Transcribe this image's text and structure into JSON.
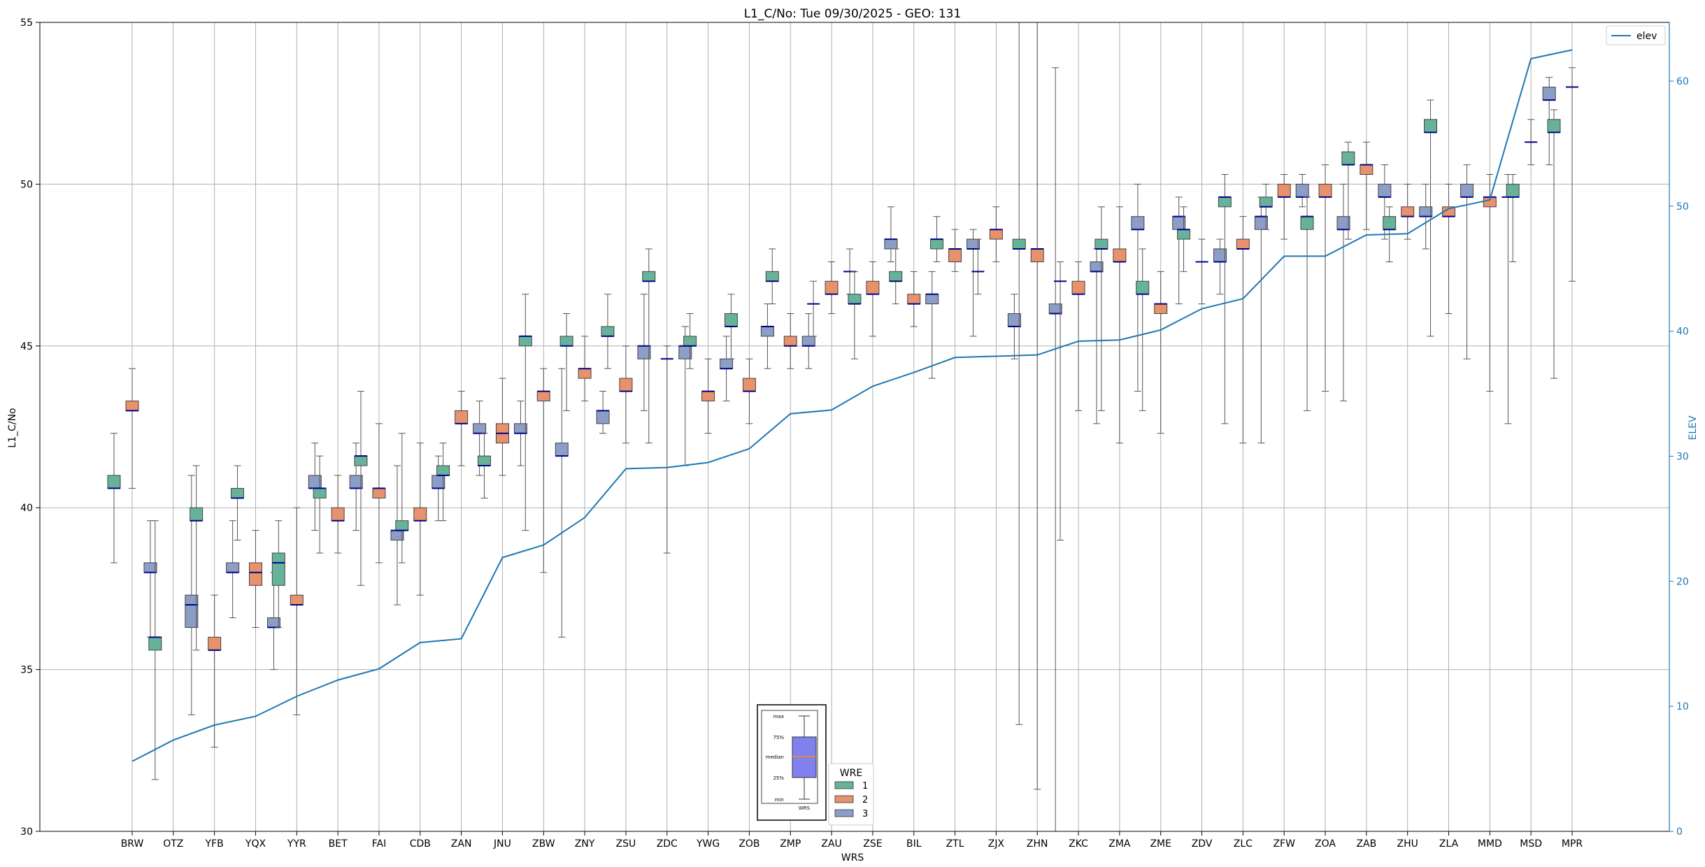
{
  "chart_data": {
    "type": "box",
    "title": "L1_C/No: Tue 09/30/2025 - GEO: 131",
    "xlabel": "WRS",
    "ylabel": "L1_C/No",
    "y2label": "ELEV",
    "ylim": [
      30,
      55
    ],
    "y2lim": [
      0,
      64.7
    ],
    "yticks": [
      30,
      35,
      40,
      45,
      50,
      55
    ],
    "y2ticks": [
      0,
      10,
      20,
      30,
      40,
      50,
      60
    ],
    "grid": true,
    "legend_line": "elev",
    "legend_title": "WRE",
    "legend_entries": [
      "1",
      "2",
      "3"
    ],
    "colors": {
      "wre1": "#66b399",
      "wre2": "#e8916d",
      "wre3": "#8c9dc6",
      "elev_line": "#1f77b4",
      "median": "#00008b",
      "whisker": "#555555",
      "grid": "#b0b0b0"
    },
    "categories": [
      "BRW",
      "OTZ",
      "YFB",
      "YQX",
      "YYR",
      "BET",
      "FAI",
      "CDB",
      "ZAN",
      "JNU",
      "ZBW",
      "ZNY",
      "ZSU",
      "ZDC",
      "YWG",
      "ZOB",
      "ZMP",
      "ZAU",
      "ZSE",
      "BIL",
      "ZTL",
      "ZJX",
      "ZHN",
      "ZKC",
      "ZMA",
      "ZME",
      "ZDV",
      "ZLC",
      "ZFW",
      "ZOA",
      "ZAB",
      "ZHU",
      "ZLA",
      "MMD",
      "MSD",
      "MPR"
    ],
    "elev": [
      5.6,
      7.3,
      8.5,
      9.2,
      10.8,
      12.1,
      13.0,
      15.1,
      15.4,
      21.9,
      22.9,
      25.1,
      29.0,
      29.1,
      29.5,
      30.6,
      33.4,
      33.7,
      35.6,
      36.7,
      37.9,
      38.0,
      38.1,
      39.2,
      39.3,
      40.1,
      41.8,
      42.6,
      46.0,
      46.0,
      47.7,
      47.8,
      49.8,
      50.5,
      61.8,
      62.5
    ],
    "boxes": [
      {
        "station": "BRW",
        "wre": 1,
        "min": 38.3,
        "q1": 40.6,
        "median": 40.6,
        "q3": 41.0,
        "max": 42.3
      },
      {
        "station": "BRW",
        "wre": 2,
        "min": 40.6,
        "q1": 43.0,
        "median": 43.0,
        "q3": 43.3,
        "max": 44.3
      },
      {
        "station": "BRW",
        "wre": 3,
        "min": 36.0,
        "q1": 38.0,
        "median": 38.0,
        "q3": 38.3,
        "max": 39.6
      },
      {
        "station": "OTZ",
        "wre": 1,
        "min": 31.6,
        "q1": 35.6,
        "median": 36.0,
        "q3": 36.0,
        "max": 39.6
      },
      {
        "station": "OTZ",
        "wre": 3,
        "min": 33.6,
        "q1": 36.3,
        "median": 37.0,
        "q3": 37.3,
        "max": 41.0
      },
      {
        "station": "YFB",
        "wre": 1,
        "min": 35.6,
        "q1": 39.6,
        "median": 39.6,
        "q3": 40.0,
        "max": 41.3
      },
      {
        "station": "YFB",
        "wre": 2,
        "min": 32.6,
        "q1": 35.6,
        "median": 35.6,
        "q3": 36.0,
        "max": 37.3
      },
      {
        "station": "YFB",
        "wre": 3,
        "min": 36.6,
        "q1": 38.0,
        "median": 38.0,
        "q3": 38.3,
        "max": 39.6
      },
      {
        "station": "YQX",
        "wre": 1,
        "min": 39.0,
        "q1": 40.3,
        "median": 40.3,
        "q3": 40.6,
        "max": 41.3
      },
      {
        "station": "YQX",
        "wre": 2,
        "min": 36.3,
        "q1": 37.6,
        "median": 38.0,
        "q3": 38.3,
        "max": 39.3
      },
      {
        "station": "YQX",
        "wre": 3,
        "min": 35.0,
        "q1": 36.3,
        "median": 36.3,
        "q3": 36.6,
        "max": 38.0
      },
      {
        "station": "YYR",
        "wre": 1,
        "min": 36.3,
        "q1": 37.6,
        "median": 38.3,
        "q3": 38.6,
        "max": 39.6
      },
      {
        "station": "YYR",
        "wre": 2,
        "min": 33.6,
        "q1": 37.0,
        "median": 37.0,
        "q3": 37.3,
        "max": 40.0
      },
      {
        "station": "YYR",
        "wre": 3,
        "min": 39.3,
        "q1": 40.6,
        "median": 40.6,
        "q3": 41.0,
        "max": 42.0
      },
      {
        "station": "BET",
        "wre": 1,
        "min": 38.6,
        "q1": 40.3,
        "median": 40.6,
        "q3": 40.6,
        "max": 41.6
      },
      {
        "station": "BET",
        "wre": 2,
        "min": 38.6,
        "q1": 39.6,
        "median": 39.6,
        "q3": 40.0,
        "max": 41.0
      },
      {
        "station": "BET",
        "wre": 3,
        "min": 39.3,
        "q1": 40.6,
        "median": 40.6,
        "q3": 41.0,
        "max": 42.0
      },
      {
        "station": "FAI",
        "wre": 1,
        "min": 37.6,
        "q1": 41.3,
        "median": 41.6,
        "q3": 41.6,
        "max": 43.6
      },
      {
        "station": "FAI",
        "wre": 2,
        "min": 38.3,
        "q1": 40.3,
        "median": 40.6,
        "q3": 40.6,
        "max": 42.6
      },
      {
        "station": "FAI",
        "wre": 3,
        "min": 37.0,
        "q1": 39.0,
        "median": 39.3,
        "q3": 39.3,
        "max": 41.3
      },
      {
        "station": "CDB",
        "wre": 1,
        "min": 38.3,
        "q1": 39.3,
        "median": 39.3,
        "q3": 39.6,
        "max": 42.3
      },
      {
        "station": "CDB",
        "wre": 2,
        "min": 37.3,
        "q1": 39.6,
        "median": 39.6,
        "q3": 40.0,
        "max": 42.0
      },
      {
        "station": "CDB",
        "wre": 3,
        "min": 39.6,
        "q1": 40.6,
        "median": 40.6,
        "q3": 41.0,
        "max": 41.6
      },
      {
        "station": "ZAN",
        "wre": 1,
        "min": 39.6,
        "q1": 41.0,
        "median": 41.0,
        "q3": 41.3,
        "max": 42.0
      },
      {
        "station": "ZAN",
        "wre": 2,
        "min": 41.3,
        "q1": 42.6,
        "median": 42.6,
        "q3": 43.0,
        "max": 43.6
      },
      {
        "station": "ZAN",
        "wre": 3,
        "min": 41.0,
        "q1": 42.3,
        "median": 42.3,
        "q3": 42.6,
        "max": 43.3
      },
      {
        "station": "JNU",
        "wre": 1,
        "min": 40.3,
        "q1": 41.3,
        "median": 41.3,
        "q3": 41.6,
        "max": 42.3
      },
      {
        "station": "JNU",
        "wre": 2,
        "min": 41.0,
        "q1": 42.0,
        "median": 42.3,
        "q3": 42.6,
        "max": 44.0
      },
      {
        "station": "JNU",
        "wre": 3,
        "min": 41.3,
        "q1": 42.3,
        "median": 42.3,
        "q3": 42.6,
        "max": 43.3
      },
      {
        "station": "ZBW",
        "wre": 1,
        "min": 39.3,
        "q1": 45.0,
        "median": 45.3,
        "q3": 45.3,
        "max": 46.6
      },
      {
        "station": "ZBW",
        "wre": 2,
        "min": 38.0,
        "q1": 43.3,
        "median": 43.6,
        "q3": 43.6,
        "max": 44.3
      },
      {
        "station": "ZBW",
        "wre": 3,
        "min": 36.0,
        "q1": 41.6,
        "median": 41.6,
        "q3": 42.0,
        "max": 44.3
      },
      {
        "station": "ZNY",
        "wre": 1,
        "min": 43.0,
        "q1": 45.0,
        "median": 45.0,
        "q3": 45.3,
        "max": 46.0
      },
      {
        "station": "ZNY",
        "wre": 2,
        "min": 43.3,
        "q1": 44.0,
        "median": 44.3,
        "q3": 44.3,
        "max": 45.3
      },
      {
        "station": "ZNY",
        "wre": 3,
        "min": 42.3,
        "q1": 42.6,
        "median": 43.0,
        "q3": 43.0,
        "max": 43.6
      },
      {
        "station": "ZSU",
        "wre": 1,
        "min": 44.3,
        "q1": 45.3,
        "median": 45.3,
        "q3": 45.6,
        "max": 46.6
      },
      {
        "station": "ZSU",
        "wre": 2,
        "min": 42.0,
        "q1": 43.6,
        "median": 43.6,
        "q3": 44.0,
        "max": 45.0
      },
      {
        "station": "ZSU",
        "wre": 3,
        "min": 43.0,
        "q1": 44.6,
        "median": 45.0,
        "q3": 45.0,
        "max": 46.6
      },
      {
        "station": "ZDC",
        "wre": 1,
        "min": 42.0,
        "q1": 47.0,
        "median": 47.0,
        "q3": 47.3,
        "max": 48.0
      },
      {
        "station": "ZDC",
        "wre": 2,
        "min": 38.6,
        "q1": 44.6,
        "median": 44.6,
        "q3": 44.6,
        "max": 45.0
      },
      {
        "station": "ZDC",
        "wre": 3,
        "min": 41.3,
        "q1": 44.6,
        "median": 45.0,
        "q3": 45.0,
        "max": 45.6
      },
      {
        "station": "YWG",
        "wre": 1,
        "min": 44.3,
        "q1": 45.0,
        "median": 45.0,
        "q3": 45.3,
        "max": 46.0
      },
      {
        "station": "YWG",
        "wre": 2,
        "min": 42.3,
        "q1": 43.3,
        "median": 43.6,
        "q3": 43.6,
        "max": 44.6
      },
      {
        "station": "YWG",
        "wre": 3,
        "min": 43.3,
        "q1": 44.3,
        "median": 44.3,
        "q3": 44.6,
        "max": 45.3
      },
      {
        "station": "ZOB",
        "wre": 1,
        "min": 44.6,
        "q1": 45.6,
        "median": 45.6,
        "q3": 46.0,
        "max": 46.6
      },
      {
        "station": "ZOB",
        "wre": 2,
        "min": 42.6,
        "q1": 43.6,
        "median": 43.6,
        "q3": 44.0,
        "max": 44.6
      },
      {
        "station": "ZOB",
        "wre": 3,
        "min": 44.3,
        "q1": 45.3,
        "median": 45.6,
        "q3": 45.6,
        "max": 46.3
      },
      {
        "station": "ZMP",
        "wre": 1,
        "min": 46.3,
        "q1": 47.0,
        "median": 47.0,
        "q3": 47.3,
        "max": 48.0
      },
      {
        "station": "ZMP",
        "wre": 2,
        "min": 44.3,
        "q1": 45.0,
        "median": 45.0,
        "q3": 45.3,
        "max": 46.0
      },
      {
        "station": "ZMP",
        "wre": 3,
        "min": 44.3,
        "q1": 45.0,
        "median": 45.0,
        "q3": 45.3,
        "max": 46.0
      },
      {
        "station": "ZAU",
        "wre": 1,
        "min": 45.3,
        "q1": 46.3,
        "median": 46.3,
        "q3": 46.3,
        "max": 47.0
      },
      {
        "station": "ZAU",
        "wre": 2,
        "min": 46.0,
        "q1": 46.6,
        "median": 46.6,
        "q3": 47.0,
        "max": 47.6
      },
      {
        "station": "ZAU",
        "wre": 3,
        "min": 46.6,
        "q1": 47.3,
        "median": 47.3,
        "q3": 47.3,
        "max": 48.0
      },
      {
        "station": "ZSE",
        "wre": 1,
        "min": 44.6,
        "q1": 46.3,
        "median": 46.3,
        "q3": 46.6,
        "max": 47.3
      },
      {
        "station": "ZSE",
        "wre": 2,
        "min": 45.3,
        "q1": 46.6,
        "median": 46.6,
        "q3": 47.0,
        "max": 47.6
      },
      {
        "station": "ZSE",
        "wre": 3,
        "min": 47.6,
        "q1": 48.0,
        "median": 48.3,
        "q3": 48.3,
        "max": 49.3
      },
      {
        "station": "BIL",
        "wre": 1,
        "min": 46.3,
        "q1": 47.0,
        "median": 47.0,
        "q3": 47.3,
        "max": 48.0
      },
      {
        "station": "BIL",
        "wre": 2,
        "min": 45.6,
        "q1": 46.3,
        "median": 46.3,
        "q3": 46.6,
        "max": 47.3
      },
      {
        "station": "BIL",
        "wre": 3,
        "min": 44.0,
        "q1": 46.3,
        "median": 46.6,
        "q3": 46.6,
        "max": 47.3
      },
      {
        "station": "ZTL",
        "wre": 1,
        "min": 47.6,
        "q1": 48.0,
        "median": 48.3,
        "q3": 48.3,
        "max": 49.0
      },
      {
        "station": "ZTL",
        "wre": 2,
        "min": 47.3,
        "q1": 47.6,
        "median": 48.0,
        "q3": 48.0,
        "max": 48.6
      },
      {
        "station": "ZTL",
        "wre": 3,
        "min": 45.3,
        "q1": 48.0,
        "median": 48.0,
        "q3": 48.3,
        "max": 48.6
      },
      {
        "station": "ZJX",
        "wre": 1,
        "min": 46.6,
        "q1": 47.3,
        "median": 47.3,
        "q3": 47.3,
        "max": 48.3
      },
      {
        "station": "ZJX",
        "wre": 2,
        "min": 47.6,
        "q1": 48.3,
        "median": 48.6,
        "q3": 48.6,
        "max": 49.3
      },
      {
        "station": "ZJX",
        "wre": 3,
        "min": 44.6,
        "q1": 45.6,
        "median": 45.6,
        "q3": 46.0,
        "max": 46.6
      },
      {
        "station": "ZHN",
        "wre": 1,
        "min": 33.3,
        "q1": 48.0,
        "median": 48.0,
        "q3": 48.3,
        "max": 55.0
      },
      {
        "station": "ZHN",
        "wre": 2,
        "min": 31.3,
        "q1": 47.6,
        "median": 48.0,
        "q3": 48.0,
        "max": 55.0
      },
      {
        "station": "ZHN",
        "wre": 3,
        "min": 30.0,
        "q1": 46.0,
        "median": 46.0,
        "q3": 46.3,
        "max": 53.6
      },
      {
        "station": "ZKC",
        "wre": 1,
        "min": 39.0,
        "q1": 47.0,
        "median": 47.0,
        "q3": 47.0,
        "max": 47.6
      },
      {
        "station": "ZKC",
        "wre": 2,
        "min": 43.0,
        "q1": 46.6,
        "median": 46.6,
        "q3": 47.0,
        "max": 47.6
      },
      {
        "station": "ZKC",
        "wre": 3,
        "min": 42.6,
        "q1": 47.3,
        "median": 47.3,
        "q3": 47.6,
        "max": 48.0
      },
      {
        "station": "ZMA",
        "wre": 1,
        "min": 43.0,
        "q1": 48.0,
        "median": 48.0,
        "q3": 48.3,
        "max": 49.3
      },
      {
        "station": "ZMA",
        "wre": 2,
        "min": 42.0,
        "q1": 47.6,
        "median": 47.6,
        "q3": 48.0,
        "max": 49.3
      },
      {
        "station": "ZMA",
        "wre": 3,
        "min": 43.6,
        "q1": 48.6,
        "median": 48.6,
        "q3": 49.0,
        "max": 50.0
      },
      {
        "station": "ZME",
        "wre": 1,
        "min": 43.0,
        "q1": 46.6,
        "median": 46.6,
        "q3": 47.0,
        "max": 48.0
      },
      {
        "station": "ZME",
        "wre": 2,
        "min": 42.3,
        "q1": 46.0,
        "median": 46.3,
        "q3": 46.3,
        "max": 47.3
      },
      {
        "station": "ZME",
        "wre": 3,
        "min": 46.3,
        "q1": 48.6,
        "median": 49.0,
        "q3": 49.0,
        "max": 49.6
      },
      {
        "station": "ZDV",
        "wre": 1,
        "min": 47.3,
        "q1": 48.3,
        "median": 48.6,
        "q3": 48.6,
        "max": 49.3
      },
      {
        "station": "ZDV",
        "wre": 2,
        "min": 46.3,
        "q1": 47.6,
        "median": 47.6,
        "q3": 47.6,
        "max": 48.3
      },
      {
        "station": "ZDV",
        "wre": 3,
        "min": 46.6,
        "q1": 47.6,
        "median": 47.6,
        "q3": 48.0,
        "max": 48.3
      },
      {
        "station": "ZLC",
        "wre": 1,
        "min": 42.6,
        "q1": 49.3,
        "median": 49.6,
        "q3": 49.6,
        "max": 50.3
      },
      {
        "station": "ZLC",
        "wre": 2,
        "min": 42.0,
        "q1": 48.0,
        "median": 48.0,
        "q3": 48.3,
        "max": 49.0
      },
      {
        "station": "ZLC",
        "wre": 3,
        "min": 42.0,
        "q1": 48.6,
        "median": 49.0,
        "q3": 49.0,
        "max": 49.6
      },
      {
        "station": "ZFW",
        "wre": 1,
        "min": 48.6,
        "q1": 49.3,
        "median": 49.3,
        "q3": 49.6,
        "max": 50.0
      },
      {
        "station": "ZFW",
        "wre": 2,
        "min": 48.3,
        "q1": 49.6,
        "median": 49.6,
        "q3": 50.0,
        "max": 50.3
      },
      {
        "station": "ZFW",
        "wre": 3,
        "min": 49.3,
        "q1": 49.6,
        "median": 49.6,
        "q3": 50.0,
        "max": 50.3
      },
      {
        "station": "ZOA",
        "wre": 1,
        "min": 43.0,
        "q1": 48.6,
        "median": 49.0,
        "q3": 49.0,
        "max": 49.6
      },
      {
        "station": "ZOA",
        "wre": 2,
        "min": 43.6,
        "q1": 49.6,
        "median": 49.6,
        "q3": 50.0,
        "max": 50.6
      },
      {
        "station": "ZOA",
        "wre": 3,
        "min": 43.3,
        "q1": 48.6,
        "median": 48.6,
        "q3": 49.0,
        "max": 50.0
      },
      {
        "station": "ZAB",
        "wre": 1,
        "min": 48.3,
        "q1": 50.6,
        "median": 50.6,
        "q3": 51.0,
        "max": 51.3
      },
      {
        "station": "ZAB",
        "wre": 2,
        "min": 48.6,
        "q1": 50.3,
        "median": 50.6,
        "q3": 50.6,
        "max": 51.3
      },
      {
        "station": "ZAB",
        "wre": 3,
        "min": 48.3,
        "q1": 49.6,
        "median": 49.6,
        "q3": 50.0,
        "max": 50.6
      },
      {
        "station": "ZHU",
        "wre": 1,
        "min": 47.6,
        "q1": 48.6,
        "median": 48.6,
        "q3": 49.0,
        "max": 49.3
      },
      {
        "station": "ZHU",
        "wre": 2,
        "min": 48.3,
        "q1": 49.0,
        "median": 49.0,
        "q3": 49.3,
        "max": 50.0
      },
      {
        "station": "ZHU",
        "wre": 3,
        "min": 48.0,
        "q1": 49.0,
        "median": 49.0,
        "q3": 49.3,
        "max": 50.0
      },
      {
        "station": "ZLA",
        "wre": 1,
        "min": 45.3,
        "q1": 51.6,
        "median": 51.6,
        "q3": 52.0,
        "max": 52.6
      },
      {
        "station": "ZLA",
        "wre": 2,
        "min": 46.0,
        "q1": 49.0,
        "median": 49.0,
        "q3": 49.3,
        "max": 50.0
      },
      {
        "station": "ZLA",
        "wre": 3,
        "min": 44.6,
        "q1": 49.6,
        "median": 49.6,
        "q3": 50.0,
        "max": 50.6
      },
      {
        "station": "MMD",
        "wre": 2,
        "min": 43.6,
        "q1": 49.3,
        "median": 49.6,
        "q3": 49.6,
        "max": 50.3
      },
      {
        "station": "MMD",
        "wre": 3,
        "min": 42.6,
        "q1": 49.6,
        "median": 49.6,
        "q3": 49.6,
        "max": 50.3
      },
      {
        "station": "MSD",
        "wre": 1,
        "min": 47.6,
        "q1": 49.6,
        "median": 49.6,
        "q3": 50.0,
        "max": 50.3
      },
      {
        "station": "MSD",
        "wre": 2,
        "min": 50.6,
        "q1": 51.3,
        "median": 51.3,
        "q3": 51.3,
        "max": 52.0
      },
      {
        "station": "MSD",
        "wre": 3,
        "min": 50.6,
        "q1": 52.6,
        "median": 52.6,
        "q3": 53.0,
        "max": 53.3
      },
      {
        "station": "MPR",
        "wre": 1,
        "min": 44.0,
        "q1": 51.6,
        "median": 51.6,
        "q3": 52.0,
        "max": 52.3
      },
      {
        "station": "MPR",
        "wre": 2,
        "min": 47.0,
        "q1": 53.0,
        "median": 53.0,
        "q3": 53.0,
        "max": 53.6
      }
    ],
    "inset": {
      "labels": [
        "max",
        "75%",
        "median",
        "25%",
        "min"
      ],
      "caption": "WRS"
    }
  }
}
